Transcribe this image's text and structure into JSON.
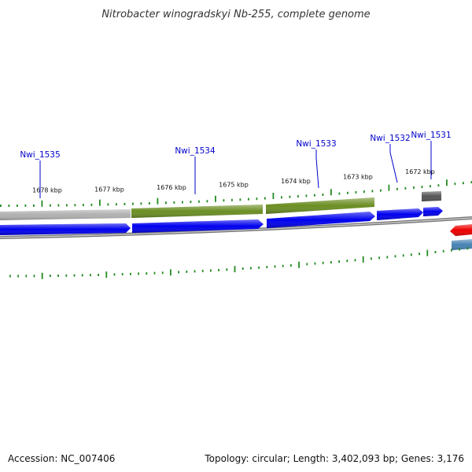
{
  "title": "Nitrobacter winogradskyi Nb-255, complete genome",
  "footer": {
    "accession": "Accession: NC_007406",
    "summary": "Topology: circular; Length: 3,402,093 bp; Genes: 3,176"
  },
  "genes": [
    {
      "label": "Nwi_1535",
      "pos_kbp": 1678.0
    },
    {
      "label": "Nwi_1534",
      "pos_kbp": 1675.9
    },
    {
      "label": "Nwi_1533",
      "pos_kbp": 1673.9
    },
    {
      "label": "Nwi_1532",
      "pos_kbp": 1672.55
    },
    {
      "label": "Nwi_1531",
      "pos_kbp": 1671.8
    }
  ],
  "ticks": [
    {
      "label": "1678 kbp",
      "kbp": 1678
    },
    {
      "label": "1677 kbp",
      "kbp": 1677
    },
    {
      "label": "1676 kbp",
      "kbp": 1676
    },
    {
      "label": "1675 kbp",
      "kbp": 1675
    },
    {
      "label": "1674 kbp",
      "kbp": 1674
    },
    {
      "label": "1673 kbp",
      "kbp": 1673
    },
    {
      "label": "1672 kbp",
      "kbp": 1672
    }
  ],
  "colors": {
    "cds": "#0000ee",
    "cog_green": "#6b8e23",
    "cog_gray": "#b0b0b0",
    "cog_dark": "#555555",
    "red_feature": "#ee0000",
    "steelblue_feature": "#4682b4",
    "backbone": "#777777",
    "tick_green": "#228b22"
  }
}
